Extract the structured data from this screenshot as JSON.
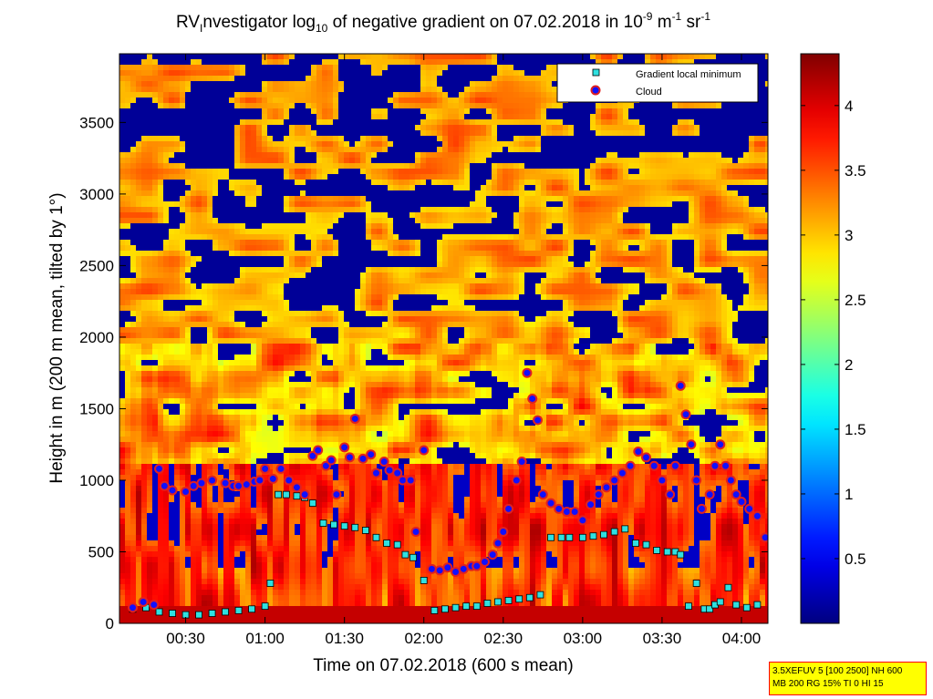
{
  "chart_data": {
    "type": "heatmap",
    "title": {
      "prefix": "RV",
      "prefix_sub": "I",
      "part1": "nvestigator log",
      "part1_sub": "10",
      "part2": " of negative gradient on 07.02.2018 in 10",
      "part2_sup": "-9",
      "part3": " m",
      "part3_sup": "-1",
      "part4": " sr",
      "part4_sup": "-1"
    },
    "xlabel": "Time on 07.02.2018 (600 s mean)",
    "ylabel": "Height in m (200 m mean, tilted by 1°)",
    "xlim": [
      "00:05",
      "04:10"
    ],
    "ylim": [
      0,
      3980
    ],
    "x_ticks": [
      "00:30",
      "01:00",
      "01:30",
      "02:00",
      "02:30",
      "03:00",
      "03:30",
      "04:00"
    ],
    "y_ticks": [
      0,
      500,
      1000,
      1500,
      2000,
      2500,
      3000,
      3500
    ],
    "colorbar": {
      "range": [
        0,
        4.4
      ],
      "ticks": [
        0.5,
        1,
        1.5,
        2,
        2.5,
        3,
        3.5,
        4
      ],
      "colormap": "jet"
    },
    "legend": {
      "placement": "top-right",
      "entries": [
        {
          "label": "Gradient local minimum",
          "marker": "square",
          "color": "#2fe0e0"
        },
        {
          "label": "Cloud",
          "marker": "circle",
          "color": "#1010ff",
          "edge": "#e02020"
        }
      ]
    },
    "series": [
      {
        "name": "Cloud",
        "x": [
          "00:10",
          "00:14",
          "00:18",
          "00:20",
          "00:22",
          "00:25",
          "00:30",
          "00:33",
          "00:36",
          "00:40",
          "00:45",
          "00:48",
          "00:50",
          "00:53",
          "00:56",
          "00:58",
          "01:00",
          "01:03",
          "01:06",
          "01:09",
          "01:12",
          "01:15",
          "01:18",
          "01:20",
          "01:23",
          "01:25",
          "01:27",
          "01:30",
          "01:32",
          "01:34",
          "01:37",
          "01:40",
          "01:42",
          "01:45",
          "01:47",
          "01:50",
          "01:52",
          "01:55",
          "01:57",
          "02:00",
          "02:03",
          "02:06",
          "02:09",
          "02:12",
          "02:15",
          "02:18",
          "02:20",
          "02:23",
          "02:26",
          "02:28",
          "02:30",
          "02:32",
          "02:35",
          "02:37",
          "02:39",
          "02:41",
          "02:43",
          "02:45",
          "02:48",
          "02:51",
          "02:54",
          "02:57",
          "03:00",
          "03:03",
          "03:06",
          "03:09",
          "03:12",
          "03:15",
          "03:18",
          "03:21",
          "03:24",
          "03:27",
          "03:30",
          "03:33",
          "03:35",
          "03:37",
          "03:39",
          "03:41",
          "03:43",
          "03:45",
          "03:48",
          "03:50",
          "03:52",
          "03:54",
          "03:56",
          "03:58",
          "04:00",
          "04:03",
          "04:06",
          "04:09"
        ],
        "y": [
          110,
          150,
          130,
          1080,
          960,
          930,
          920,
          960,
          980,
          1000,
          980,
          960,
          960,
          970,
          990,
          1000,
          1080,
          1010,
          1080,
          1000,
          950,
          900,
          1170,
          1210,
          1100,
          1140,
          900,
          1230,
          1160,
          1430,
          1150,
          1180,
          1050,
          1130,
          1070,
          1050,
          1000,
          1000,
          640,
          1210,
          380,
          370,
          390,
          360,
          380,
          400,
          400,
          430,
          480,
          560,
          640,
          800,
          1000,
          1130,
          1750,
          1570,
          1420,
          900,
          840,
          800,
          780,
          780,
          720,
          830,
          900,
          950,
          1000,
          1050,
          1100,
          1200,
          1160,
          1100,
          1000,
          900,
          1100,
          1660,
          1460,
          1250,
          1000,
          800,
          900,
          1100,
          1250,
          1100,
          1000,
          900,
          850,
          800,
          750,
          600
        ]
      },
      {
        "name": "Gradient local minimum",
        "x": [
          "00:10",
          "00:15",
          "00:20",
          "00:25",
          "00:30",
          "00:35",
          "00:40",
          "00:45",
          "00:50",
          "00:55",
          "01:00",
          "01:02",
          "01:05",
          "01:08",
          "01:12",
          "01:15",
          "01:18",
          "01:22",
          "01:26",
          "01:30",
          "01:34",
          "01:38",
          "01:42",
          "01:46",
          "01:50",
          "01:53",
          "01:56",
          "02:00",
          "02:04",
          "02:08",
          "02:12",
          "02:16",
          "02:20",
          "02:24",
          "02:28",
          "02:32",
          "02:36",
          "02:40",
          "02:44",
          "02:48",
          "02:52",
          "02:55",
          "03:00",
          "03:04",
          "03:08",
          "03:12",
          "03:16",
          "03:20",
          "03:24",
          "03:28",
          "03:32",
          "03:35",
          "03:37",
          "03:40",
          "03:43",
          "03:46",
          "03:48",
          "03:50",
          "03:52",
          "03:55",
          "03:58",
          "04:02",
          "04:06"
        ],
        "y": [
          100,
          110,
          80,
          70,
          60,
          60,
          70,
          80,
          90,
          100,
          120,
          280,
          900,
          900,
          890,
          880,
          840,
          700,
          690,
          680,
          670,
          650,
          600,
          560,
          550,
          480,
          460,
          300,
          90,
          100,
          110,
          120,
          120,
          140,
          150,
          160,
          170,
          180,
          200,
          600,
          600,
          600,
          600,
          610,
          620,
          640,
          660,
          560,
          550,
          510,
          500,
          500,
          480,
          120,
          280,
          100,
          100,
          130,
          150,
          250,
          130,
          110,
          130
        ]
      }
    ]
  },
  "annotation_box": {
    "line1": "3.5XEFUV 5 [100 2500] NH 600",
    "line2": "MB 200 RG 15% TI 0 HI 15"
  },
  "colors": {
    "low": "#000080",
    "mid": "#ffff00",
    "high": "#800000",
    "gradient_min_marker": "#2fe0e0",
    "cloud_marker_fill": "#1010ff",
    "cloud_marker_edge": "#e02020",
    "annotation_bg": "#ffff00",
    "annotation_border": "#ff0000"
  }
}
